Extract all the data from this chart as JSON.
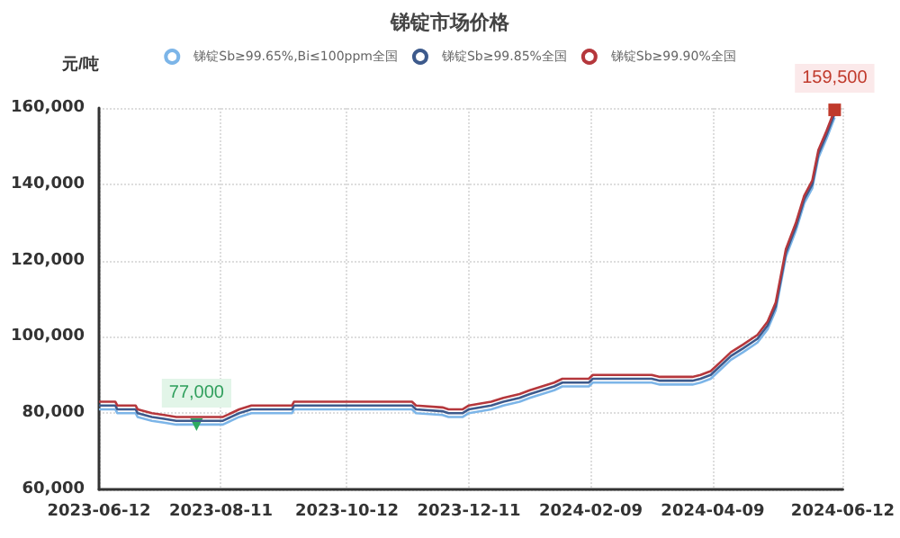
{
  "chart_data": {
    "type": "line",
    "title": "锑锭市场价格",
    "ylabel": "元/吨",
    "x": [
      "2023-06-12",
      "2023-06-20",
      "2023-06-21",
      "2023-06-30",
      "2023-07-01",
      "2023-07-08",
      "2023-07-14",
      "2023-07-20",
      "2023-07-30",
      "2023-08-12",
      "2023-08-16",
      "2023-08-20",
      "2023-08-26",
      "2023-09-15",
      "2023-09-16",
      "2023-11-13",
      "2023-11-15",
      "2023-11-28",
      "2023-12-01",
      "2023-12-08",
      "2023-12-11",
      "2023-12-22",
      "2023-12-28",
      "2024-01-05",
      "2024-01-10",
      "2024-01-16",
      "2024-01-22",
      "2024-01-26",
      "2024-02-08",
      "2024-02-10",
      "2024-03-10",
      "2024-03-14",
      "2024-03-30",
      "2024-04-03",
      "2024-04-08",
      "2024-04-12",
      "2024-04-18",
      "2024-04-24",
      "2024-05-01",
      "2024-05-06",
      "2024-05-10",
      "2024-05-15",
      "2024-05-20",
      "2024-05-24",
      "2024-05-28",
      "2024-05-31",
      "2024-06-04",
      "2024-06-08"
    ],
    "series": [
      {
        "name": "锑锭Sb≥99.65%,Bi≤100ppm全国",
        "color": "#7cb5e8",
        "values": [
          81000,
          81000,
          80000,
          80000,
          79000,
          78000,
          77500,
          77000,
          77000,
          77000,
          78000,
          79000,
          80000,
          80000,
          81000,
          81000,
          80000,
          79500,
          79000,
          79000,
          80000,
          81000,
          82000,
          83000,
          84000,
          85000,
          86000,
          87000,
          87000,
          88000,
          88000,
          87500,
          87500,
          88000,
          89000,
          91000,
          94000,
          96000,
          98500,
          102000,
          107000,
          121000,
          128000,
          135000,
          139000,
          147000,
          152000,
          157500
        ],
        "value_labels": [
          null,
          null,
          null,
          null,
          null,
          null,
          null,
          null,
          "77,000",
          null,
          null,
          null,
          null,
          null,
          null,
          null,
          null,
          null,
          null,
          null,
          null,
          null,
          null,
          null,
          null,
          null,
          null,
          null,
          null,
          null,
          null,
          null,
          null,
          null,
          null,
          null,
          null,
          null,
          null,
          null,
          null,
          null,
          null,
          null,
          null,
          null,
          null,
          null
        ]
      },
      {
        "name": "锑锭Sb≥99.85%全国",
        "color": "#3d5a8c",
        "values": [
          82000,
          82000,
          81000,
          81000,
          80000,
          79000,
          78500,
          78000,
          78000,
          78000,
          79000,
          80000,
          81000,
          81000,
          82000,
          82000,
          81000,
          80500,
          80000,
          80000,
          81000,
          82000,
          83000,
          84000,
          85000,
          86000,
          87000,
          88000,
          88000,
          89000,
          89000,
          88500,
          88500,
          89000,
          90000,
          92000,
          95000,
          97000,
          99500,
          103000,
          108000,
          122000,
          129000,
          136000,
          140000,
          148000,
          153000,
          158500
        ]
      },
      {
        "name": "锑锭Sb≥99.90%全国",
        "color": "#b5373c",
        "values": [
          83000,
          83000,
          82000,
          82000,
          81000,
          80000,
          79500,
          79000,
          79000,
          79000,
          80000,
          81000,
          82000,
          82000,
          83000,
          83000,
          82000,
          81500,
          81000,
          81000,
          82000,
          83000,
          84000,
          85000,
          86000,
          87000,
          88000,
          89000,
          89000,
          90000,
          90000,
          89500,
          89500,
          90000,
          91000,
          93000,
          96000,
          98000,
          100500,
          104000,
          109000,
          123000,
          130000,
          137000,
          141000,
          149000,
          154000,
          159500
        ],
        "value_labels": [
          null,
          null,
          null,
          null,
          null,
          null,
          null,
          null,
          null,
          null,
          null,
          null,
          null,
          null,
          null,
          null,
          null,
          null,
          null,
          null,
          null,
          null,
          null,
          null,
          null,
          null,
          null,
          null,
          null,
          null,
          null,
          null,
          null,
          null,
          null,
          null,
          null,
          null,
          null,
          null,
          null,
          null,
          null,
          null,
          null,
          null,
          null,
          "159,500"
        ]
      }
    ],
    "xlim": [
      "2023-06-12",
      "2024-06-12"
    ],
    "xticks": [
      "2023-06-12",
      "2023-08-11",
      "2023-10-12",
      "2023-12-11",
      "2024-02-09",
      "2024-04-09",
      "2024-06-12"
    ],
    "ylim": [
      60000,
      160000
    ],
    "yticks": [
      {
        "value": 60000,
        "label": "60,000"
      },
      {
        "value": 80000,
        "label": "80,000"
      },
      {
        "value": 100000,
        "label": "100,000"
      },
      {
        "value": 120000,
        "label": "120,000"
      },
      {
        "value": 140000,
        "label": "140,000"
      },
      {
        "value": 160000,
        "label": "160,000"
      }
    ],
    "grid": true,
    "legend": "top",
    "line_style": "solid"
  }
}
